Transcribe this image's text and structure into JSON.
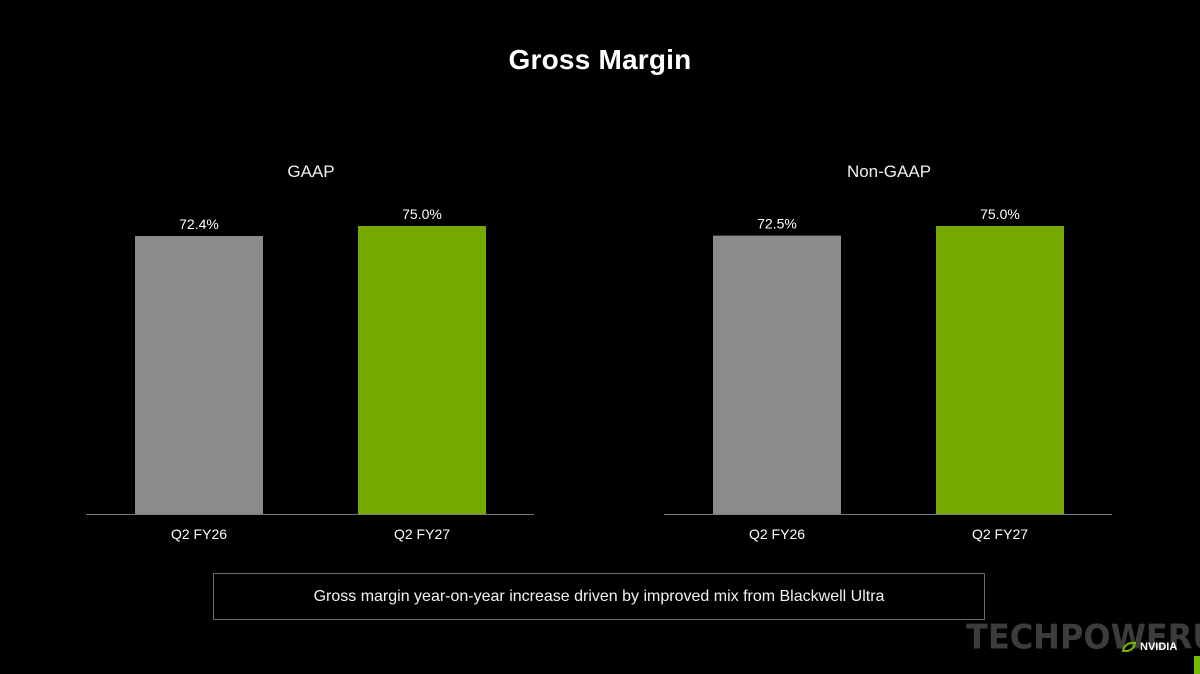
{
  "title": "Gross Margin",
  "note": "Gross margin year-on-year increase driven by improved mix from Blackwell Ultra",
  "watermark_text": "TECHPOWERUP",
  "brand_text": "NVIDIA",
  "colors": {
    "background": "#000000",
    "prior_year_bar": "#8c8a8c",
    "current_year_bar": "#76a900",
    "axis": "#7a7a7a"
  },
  "chart_data": [
    {
      "type": "bar",
      "title": "GAAP",
      "categories": [
        "Q2 FY26",
        "Q2 FY27"
      ],
      "values": [
        72.4,
        75.0
      ],
      "data_labels": [
        "72.4%",
        "75.0%"
      ],
      "bar_colors": [
        "#8c8a8c",
        "#76a900"
      ],
      "ylim": [
        0,
        75.0
      ],
      "grid": false
    },
    {
      "type": "bar",
      "title": "Non-GAAP",
      "categories": [
        "Q2 FY26",
        "Q2 FY27"
      ],
      "values": [
        72.5,
        75.0
      ],
      "data_labels": [
        "72.5%",
        "75.0%"
      ],
      "bar_colors": [
        "#8c8a8c",
        "#76a900"
      ],
      "ylim": [
        0,
        75.0
      ],
      "grid": false
    }
  ]
}
